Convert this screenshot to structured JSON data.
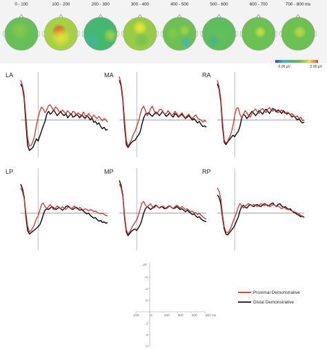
{
  "chart_data": [
    {
      "type": "heatmap",
      "kind": "scalp-topography-series",
      "time_windows": [
        "0 - 100",
        "100 - 200",
        "200 - 300",
        "300 - 400",
        "400 - 500",
        "500 - 600",
        "600 - 700",
        "700 - 800 ms"
      ],
      "maps": [
        {
          "window": "0 - 100",
          "base": 0.05,
          "blobs": [
            [
              0.45,
              0.4,
              0.3,
              0.25
            ]
          ]
        },
        {
          "window": "100 - 200",
          "base": 0.35,
          "blobs": [
            [
              0.45,
              0.42,
              0.22,
              1.0
            ],
            [
              0.5,
              0.6,
              0.3,
              0.55
            ]
          ]
        },
        {
          "window": "200 - 300",
          "base": -0.2,
          "blobs": [
            [
              0.8,
              0.55,
              0.22,
              0.35
            ],
            [
              0.25,
              0.7,
              0.25,
              -0.35
            ]
          ]
        },
        {
          "window": "300 - 400",
          "base": 0.3,
          "blobs": [
            [
              0.5,
              0.32,
              0.22,
              0.6
            ],
            [
              0.55,
              0.7,
              0.25,
              0.15
            ]
          ]
        },
        {
          "window": "400 - 500",
          "base": 0.1,
          "blobs": [
            [
              0.65,
              0.4,
              0.18,
              0.35
            ],
            [
              0.3,
              0.5,
              0.2,
              0.25
            ],
            [
              0.7,
              0.75,
              0.18,
              -0.45
            ]
          ]
        },
        {
          "window": "500 - 600",
          "base": 0.0,
          "blobs": [
            [
              0.55,
              0.55,
              0.25,
              0.05
            ],
            [
              0.35,
              0.72,
              0.2,
              -0.3
            ]
          ]
        },
        {
          "window": "600 - 700",
          "base": 0.1,
          "blobs": [
            [
              0.55,
              0.45,
              0.18,
              0.5
            ]
          ]
        },
        {
          "window": "700 - 800 ms",
          "base": 0.1,
          "blobs": [
            [
              0.55,
              0.45,
              0.2,
              0.45
            ]
          ]
        }
      ],
      "colorbar": {
        "min_label": "-2.00 µV",
        "max_label": "2.00 µV",
        "min": -2.0,
        "max": 2.0,
        "colors": [
          "#2a3fd6",
          "#3ab5e0",
          "#44b86e",
          "#79c44a",
          "#f2e636",
          "#e9402a"
        ]
      }
    },
    {
      "type": "line",
      "kind": "erp-small-multiples",
      "xlim": [
        -200,
        800
      ],
      "ylim": [
        -6,
        6
      ],
      "y_inverted": true,
      "onset_ms": 0,
      "x": [
        -200,
        -180,
        -160,
        -140,
        -120,
        -100,
        -80,
        -60,
        -40,
        -20,
        0,
        20,
        40,
        60,
        80,
        100,
        120,
        140,
        160,
        180,
        200,
        220,
        240,
        260,
        280,
        300,
        320,
        340,
        360,
        380,
        400,
        420,
        440,
        460,
        480,
        500,
        520,
        540,
        560,
        580,
        600,
        620,
        640,
        660,
        680,
        700,
        720,
        740,
        760,
        780,
        800
      ],
      "panels": [
        {
          "label": "LA",
          "red": [
            -5.5,
            -4.8,
            -3.5,
            -0.5,
            2.5,
            3.6,
            3.5,
            3.0,
            2.2,
            0.8,
            -0.3,
            -1.2,
            -1.8,
            -1.5,
            -1.0,
            -1.4,
            -2.0,
            -2.1,
            -1.7,
            -1.3,
            -1.8,
            -1.6,
            -1.2,
            -1.0,
            -1.4,
            -1.1,
            -0.9,
            -1.3,
            -1.0,
            -0.7,
            -1.2,
            -1.1,
            -0.6,
            -1.0,
            -0.8,
            -0.5,
            -1.1,
            -0.7,
            -0.4,
            -0.9,
            -0.6,
            -0.3,
            -0.7,
            -0.4,
            -0.2,
            -0.5,
            -0.2,
            0.1,
            -0.2,
            0.0,
            0.3
          ],
          "black": [
            -5.0,
            -4.5,
            -3.0,
            0.5,
            3.5,
            4.2,
            4.0,
            3.8,
            3.2,
            2.6,
            2.9,
            2.2,
            1.5,
            0.8,
            0.2,
            -0.8,
            -1.2,
            -0.8,
            -1.0,
            -1.4,
            -1.0,
            -0.6,
            -0.9,
            -1.2,
            -0.8,
            -0.6,
            -0.9,
            -0.3,
            -0.6,
            -0.9,
            -0.4,
            -0.5,
            -0.8,
            -0.6,
            -0.3,
            -0.7,
            -0.5,
            -0.2,
            -0.6,
            -0.4,
            0.0,
            -0.3,
            0.3,
            0.2,
            0.6,
            0.4,
            0.9,
            1.2,
            1.0,
            1.4,
            1.3
          ]
        },
        {
          "label": "MA",
          "red": [
            -6.0,
            -5.0,
            -3.2,
            0.0,
            2.8,
            3.6,
            3.2,
            2.7,
            2.0,
            1.6,
            0.9,
            0.2,
            -0.8,
            -1.6,
            -1.9,
            -1.3,
            -0.6,
            -0.9,
            -1.6,
            -1.9,
            -1.3,
            -0.8,
            -1.0,
            -1.4,
            -1.5,
            -1.2,
            -0.8,
            -0.9,
            -1.3,
            -1.0,
            -0.6,
            -0.8,
            -1.2,
            -0.9,
            -0.5,
            -0.7,
            -1.0,
            -0.6,
            -0.3,
            -0.6,
            -0.8,
            -0.4,
            -0.2,
            -0.5,
            -0.7,
            -0.3,
            -0.1,
            0.0,
            0.3,
            0.1,
            0.2
          ],
          "black": [
            -5.5,
            -4.7,
            -2.8,
            0.8,
            3.4,
            3.8,
            3.4,
            3.1,
            2.9,
            2.8,
            2.4,
            2.1,
            1.6,
            0.6,
            -0.3,
            -0.8,
            -0.9,
            -1.0,
            -0.7,
            -0.5,
            -0.8,
            -1.1,
            -0.9,
            -0.6,
            -0.9,
            -1.2,
            -0.8,
            -0.5,
            -0.7,
            -1.0,
            -0.6,
            -0.4,
            -0.9,
            -0.7,
            -0.4,
            -0.6,
            -0.8,
            -0.5,
            -0.2,
            -0.4,
            -0.6,
            -0.3,
            0.0,
            -0.2,
            0.1,
            0.4,
            0.2,
            0.6,
            0.9,
            0.8,
            1.0
          ]
        },
        {
          "label": "RA",
          "red": [
            -5.5,
            -4.6,
            -3.0,
            0.2,
            2.8,
            3.2,
            2.9,
            2.4,
            1.8,
            0.8,
            -0.6,
            -1.6,
            -1.7,
            -0.8,
            -0.3,
            -0.7,
            -1.3,
            -1.0,
            -0.6,
            -0.4,
            -0.9,
            -1.3,
            -1.5,
            -1.2,
            -0.9,
            -1.4,
            -1.6,
            -1.3,
            -1.0,
            -1.5,
            -1.7,
            -1.4,
            -1.2,
            -1.5,
            -1.3,
            -1.0,
            -1.2,
            -1.4,
            -1.1,
            -0.9,
            -1.1,
            -1.0,
            -0.7,
            -0.9,
            -0.6,
            -0.4,
            -0.6,
            -0.2,
            -0.4,
            0.1,
            0.0
          ],
          "black": [
            -5.0,
            -4.3,
            -2.6,
            0.9,
            3.1,
            3.4,
            3.0,
            2.7,
            2.4,
            2.1,
            2.3,
            1.9,
            1.6,
            0.9,
            -0.2,
            -0.8,
            -0.6,
            -0.2,
            -0.5,
            -0.9,
            -1.2,
            -0.9,
            -0.6,
            -0.9,
            -1.3,
            -1.1,
            -0.8,
            -1.2,
            -1.5,
            -1.2,
            -0.9,
            -1.3,
            -1.6,
            -1.4,
            -1.1,
            -1.4,
            -1.2,
            -0.9,
            -1.3,
            -1.0,
            -0.8,
            -1.0,
            -0.7,
            -0.4,
            -0.6,
            -0.3,
            0.0,
            -0.2,
            0.2,
            0.4,
            0.3
          ]
        },
        {
          "label": "LP",
          "red": [
            -3.5,
            -3.0,
            -2.0,
            0.0,
            1.8,
            2.6,
            2.4,
            2.0,
            1.5,
            0.8,
            0.4,
            -0.4,
            -1.2,
            -1.4,
            -0.9,
            -0.6,
            -0.9,
            -1.2,
            -0.8,
            -0.5,
            -0.7,
            -1.0,
            -0.8,
            -0.6,
            -0.9,
            -0.7,
            -0.5,
            -0.8,
            -0.9,
            -0.6,
            -0.8,
            -1.0,
            -0.7,
            -0.5,
            -0.8,
            -0.6,
            -0.4,
            -0.6,
            -0.5,
            -0.3,
            -0.5,
            -0.4,
            -0.2,
            -0.3,
            -0.1,
            0.0,
            0.1,
            0.0,
            0.2,
            0.3,
            0.4
          ],
          "black": [
            -4.0,
            -3.4,
            -2.2,
            0.5,
            2.4,
            2.9,
            2.7,
            2.5,
            2.3,
            2.1,
            1.9,
            1.6,
            1.0,
            0.2,
            -0.4,
            -0.6,
            -0.5,
            -0.7,
            -0.9,
            -0.7,
            -0.5,
            -0.6,
            -0.8,
            -0.6,
            -0.4,
            -0.6,
            -0.9,
            -1.0,
            -0.8,
            -0.6,
            -0.5,
            -0.7,
            -0.8,
            -0.6,
            -0.4,
            -0.5,
            -0.3,
            -0.1,
            0.1,
            0.0,
            0.3,
            0.5,
            0.7,
            0.6,
            0.9,
            1.1,
            1.0,
            1.3,
            1.2,
            1.4,
            1.3
          ]
        },
        {
          "label": "MP",
          "red": [
            -4.0,
            -3.5,
            -2.3,
            0.2,
            2.3,
            2.9,
            2.6,
            2.1,
            1.6,
            1.3,
            0.9,
            0.3,
            -0.6,
            -1.4,
            -1.6,
            -1.1,
            -0.8,
            -1.1,
            -1.3,
            -0.9,
            -0.7,
            -1.0,
            -0.9,
            -0.7,
            -0.8,
            -1.0,
            -0.8,
            -0.6,
            -0.8,
            -1.0,
            -0.8,
            -0.6,
            -0.9,
            -1.1,
            -0.9,
            -0.7,
            -0.9,
            -0.7,
            -0.5,
            -0.6,
            -0.4,
            -0.2,
            -0.3,
            0.0,
            -0.1,
            0.2,
            0.0,
            0.3,
            0.5,
            0.7,
            0.8
          ],
          "black": [
            -4.5,
            -3.8,
            -2.5,
            0.6,
            2.6,
            3.1,
            2.8,
            2.5,
            2.3,
            2.2,
            2.4,
            2.0,
            1.6,
            0.9,
            0.0,
            -0.6,
            -0.9,
            -0.7,
            -0.5,
            -0.7,
            -0.9,
            -1.1,
            -0.9,
            -0.7,
            -0.9,
            -0.8,
            -0.6,
            -0.7,
            -0.9,
            -1.0,
            -0.8,
            -0.6,
            -0.7,
            -0.9,
            -0.7,
            -0.5,
            -0.6,
            -0.4,
            -0.2,
            -0.4,
            -0.2,
            0.0,
            0.2,
            0.1,
            0.4,
            0.6,
            0.5,
            0.8,
            1.0,
            1.1,
            1.2
          ]
        },
        {
          "label": "RP",
          "red": [
            -3.5,
            -3.0,
            -2.0,
            0.2,
            1.9,
            2.6,
            2.7,
            2.4,
            1.9,
            1.2,
            0.6,
            0.0,
            -0.8,
            -1.3,
            -1.0,
            -0.7,
            -0.9,
            -1.2,
            -1.3,
            -1.1,
            -1.0,
            -1.2,
            -1.1,
            -0.9,
            -1.1,
            -1.3,
            -1.2,
            -1.0,
            -1.2,
            -1.1,
            -0.9,
            -1.0,
            -1.2,
            -1.1,
            -0.9,
            -1.0,
            -0.8,
            -0.6,
            -0.8,
            -0.7,
            -0.5,
            -0.6,
            -0.4,
            -0.3,
            -0.2,
            -0.1,
            0.0,
            0.1,
            0.3,
            0.5,
            0.6
          ],
          "black": [
            -2.5,
            -2.2,
            -1.3,
            0.6,
            2.2,
            2.9,
            3.0,
            2.7,
            2.4,
            2.1,
            1.7,
            1.1,
            0.6,
            -0.3,
            -0.9,
            -1.1,
            -0.8,
            -0.7,
            -1.0,
            -1.2,
            -1.0,
            -0.9,
            -1.1,
            -1.2,
            -1.0,
            -0.9,
            -1.1,
            -1.3,
            -1.2,
            -1.0,
            -1.1,
            -1.3,
            -1.4,
            -1.1,
            -0.9,
            -1.2,
            -1.3,
            -1.0,
            -0.8,
            -0.9,
            -0.7,
            -0.5,
            -0.6,
            -0.3,
            -0.1,
            0.0,
            0.2,
            0.3,
            0.5,
            0.4,
            0.6
          ]
        }
      ],
      "scale_axis": {
        "unit_label": "µV",
        "y_ticks": [
          -6,
          -4,
          -2,
          2,
          4,
          6
        ],
        "x_ticks": [
          "-200",
          "0",
          "200",
          "400",
          "600",
          "800 ms"
        ]
      },
      "series": [
        {
          "name": "Proximal Demonstrative",
          "color": "#d0312d"
        },
        {
          "name": "Distal Demonstrative",
          "color": "#111111"
        }
      ]
    }
  ]
}
